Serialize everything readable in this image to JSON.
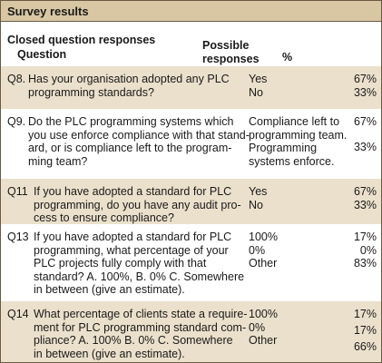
{
  "header": {
    "title": "Survey results",
    "section": "Closed question responses",
    "columns": [
      "Question",
      "Possible responses",
      "%"
    ]
  },
  "table": {
    "rows": [
      {
        "id": "Q8.",
        "question_lines": [
          "Has your organisation adopted any PLC",
          "programming standards?"
        ],
        "response_lines": [
          "Yes",
          "No"
        ],
        "percents": [
          "67%",
          "33%"
        ]
      },
      {
        "id": "Q9.",
        "question_lines": [
          "Do the PLC programming systems which",
          "you use enforce compliance with that stand-",
          "ard, or is compliance left to the program-",
          "ming team?"
        ],
        "response_lines": [
          "Compliance left to",
          "programming team.",
          "Programming",
          "systems enforce."
        ],
        "percents": [
          "67%",
          "33%"
        ]
      },
      {
        "id": "Q11",
        "question_lines": [
          "If you have adopted a standard for PLC",
          "programming, do you have any audit pro-",
          "cess to ensure compliance?"
        ],
        "response_lines": [
          "Yes",
          "No"
        ],
        "percents": [
          "67%",
          "33%"
        ]
      },
      {
        "id": "Q13",
        "question_lines": [
          "If you have adopted a standard for PLC",
          "programming, what percentage of your",
          "PLC projects fully comply with that",
          "standard? A. 100%, B. 0% C. Somewhere",
          "in between (give an estimate)."
        ],
        "response_lines": [
          "100%",
          "0%",
          "Other"
        ],
        "percents": [
          "17%",
          "0%",
          "83%"
        ]
      },
      {
        "id": "Q14",
        "question_lines": [
          "What percentage of clients state a require-",
          "ment for PLC programming standard com-",
          "pliance? A. 100% B. 0% C. Somewhere",
          "in between (give an estimate)."
        ],
        "response_lines": [
          "100%",
          "0%",
          "Other"
        ],
        "percents": [
          "17%",
          "17%",
          "66%"
        ]
      }
    ]
  }
}
